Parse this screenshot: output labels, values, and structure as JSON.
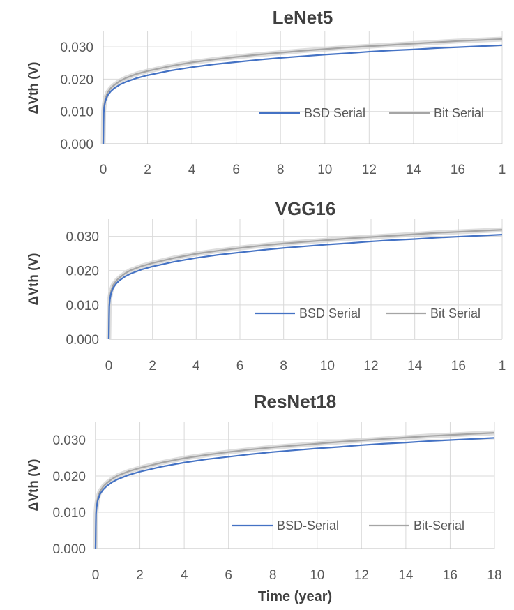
{
  "chart_data": [
    {
      "type": "line",
      "title": "LeNet5",
      "ylabel": "ΔVth (V)",
      "xlabel": "",
      "x_ticks": [
        "0",
        "2",
        "4",
        "6",
        "8",
        "10",
        "12",
        "14",
        "16",
        "1"
      ],
      "y_ticks": [
        "0.000",
        "0.010",
        "0.020",
        "0.030"
      ],
      "xlim": [
        0,
        18
      ],
      "ylim": [
        0,
        0.035
      ],
      "legend_position": "bottom-right",
      "series": [
        {
          "name": "BSD Serial",
          "color": "#4472c4",
          "x": [
            0,
            0.02,
            0.05,
            0.1,
            0.2,
            0.35,
            0.5,
            0.75,
            1,
            1.5,
            2,
            3,
            4,
            5,
            6,
            7,
            8,
            9,
            10,
            11,
            12,
            13,
            14,
            15,
            16,
            17,
            18
          ],
          "y": [
            0,
            0.0095,
            0.0115,
            0.0133,
            0.015,
            0.0163,
            0.0172,
            0.0183,
            0.0191,
            0.0203,
            0.0212,
            0.0226,
            0.0237,
            0.0246,
            0.0253,
            0.026,
            0.0266,
            0.0271,
            0.0276,
            0.028,
            0.0285,
            0.0289,
            0.0292,
            0.0296,
            0.0299,
            0.0302,
            0.0305
          ]
        },
        {
          "name": "Bit Serial",
          "color": "#a5a5a5",
          "x": [
            0,
            0.02,
            0.05,
            0.1,
            0.2,
            0.35,
            0.5,
            0.75,
            1,
            1.5,
            2,
            3,
            4,
            5,
            6,
            7,
            8,
            9,
            10,
            11,
            12,
            13,
            14,
            15,
            16,
            17,
            18
          ],
          "y": [
            0,
            0.0101,
            0.0122,
            0.0141,
            0.0159,
            0.0173,
            0.0182,
            0.0194,
            0.0203,
            0.0216,
            0.0225,
            0.024,
            0.0252,
            0.0261,
            0.0269,
            0.0276,
            0.0282,
            0.0288,
            0.0293,
            0.0298,
            0.0302,
            0.0306,
            0.031,
            0.0314,
            0.0318,
            0.0321,
            0.0324
          ]
        }
      ]
    },
    {
      "type": "line",
      "title": "VGG16",
      "ylabel": "ΔVth (V)",
      "xlabel": "",
      "x_ticks": [
        "0",
        "2",
        "4",
        "6",
        "8",
        "10",
        "12",
        "14",
        "16",
        "1"
      ],
      "y_ticks": [
        "0.000",
        "0.010",
        "0.020",
        "0.030"
      ],
      "xlim": [
        0,
        18
      ],
      "ylim": [
        0,
        0.035
      ],
      "legend_position": "bottom-right",
      "series": [
        {
          "name": "BSD Serial",
          "color": "#4472c4",
          "x": [
            0,
            0.02,
            0.05,
            0.1,
            0.2,
            0.35,
            0.5,
            0.75,
            1,
            1.5,
            2,
            3,
            4,
            5,
            6,
            7,
            8,
            9,
            10,
            11,
            12,
            13,
            14,
            15,
            16,
            17,
            18
          ],
          "y": [
            0,
            0.0095,
            0.0115,
            0.0133,
            0.015,
            0.0163,
            0.0172,
            0.0183,
            0.0191,
            0.0203,
            0.0212,
            0.0226,
            0.0237,
            0.0246,
            0.0253,
            0.026,
            0.0266,
            0.0271,
            0.0276,
            0.028,
            0.0285,
            0.0289,
            0.0292,
            0.0296,
            0.0299,
            0.0302,
            0.0305
          ]
        },
        {
          "name": "Bit Serial",
          "color": "#a5a5a5",
          "x": [
            0,
            0.02,
            0.05,
            0.1,
            0.2,
            0.35,
            0.5,
            0.75,
            1,
            1.5,
            2,
            3,
            4,
            5,
            6,
            7,
            8,
            9,
            10,
            11,
            12,
            13,
            14,
            15,
            16,
            17,
            18
          ],
          "y": [
            0,
            0.01,
            0.0121,
            0.014,
            0.0158,
            0.0171,
            0.018,
            0.0192,
            0.0201,
            0.0213,
            0.0222,
            0.0237,
            0.0249,
            0.0258,
            0.0266,
            0.0273,
            0.0279,
            0.0284,
            0.0289,
            0.0294,
            0.0298,
            0.0302,
            0.0306,
            0.031,
            0.0313,
            0.0316,
            0.0319
          ]
        }
      ]
    },
    {
      "type": "line",
      "title": "ResNet18",
      "ylabel": "ΔVth (V)",
      "xlabel": "Time (year)",
      "x_ticks": [
        "0",
        "2",
        "4",
        "6",
        "8",
        "10",
        "12",
        "14",
        "16",
        "18"
      ],
      "y_ticks": [
        "0.000",
        "0.010",
        "0.020",
        "0.030"
      ],
      "xlim": [
        0,
        18
      ],
      "ylim": [
        0,
        0.035
      ],
      "legend_position": "bottom-right",
      "series": [
        {
          "name": "BSD-Serial",
          "color": "#4472c4",
          "x": [
            0,
            0.02,
            0.05,
            0.1,
            0.2,
            0.35,
            0.5,
            0.75,
            1,
            1.5,
            2,
            3,
            4,
            5,
            6,
            7,
            8,
            9,
            10,
            11,
            12,
            13,
            14,
            15,
            16,
            17,
            18
          ],
          "y": [
            0,
            0.0095,
            0.0115,
            0.0133,
            0.015,
            0.0163,
            0.0172,
            0.0183,
            0.0191,
            0.0203,
            0.0212,
            0.0226,
            0.0237,
            0.0246,
            0.0253,
            0.026,
            0.0266,
            0.0271,
            0.0276,
            0.028,
            0.0285,
            0.0289,
            0.0292,
            0.0296,
            0.0299,
            0.0302,
            0.0305
          ]
        },
        {
          "name": "Bit-Serial",
          "color": "#a5a5a5",
          "x": [
            0,
            0.02,
            0.05,
            0.1,
            0.2,
            0.35,
            0.5,
            0.75,
            1,
            1.5,
            2,
            3,
            4,
            5,
            6,
            7,
            8,
            9,
            10,
            11,
            12,
            13,
            14,
            15,
            16,
            17,
            18
          ],
          "y": [
            0,
            0.01,
            0.0121,
            0.014,
            0.0158,
            0.0171,
            0.018,
            0.0192,
            0.0201,
            0.0213,
            0.0222,
            0.0237,
            0.0249,
            0.0258,
            0.0266,
            0.0273,
            0.0279,
            0.0284,
            0.0289,
            0.0294,
            0.0298,
            0.0302,
            0.0306,
            0.031,
            0.0313,
            0.0316,
            0.0319
          ]
        }
      ]
    }
  ]
}
